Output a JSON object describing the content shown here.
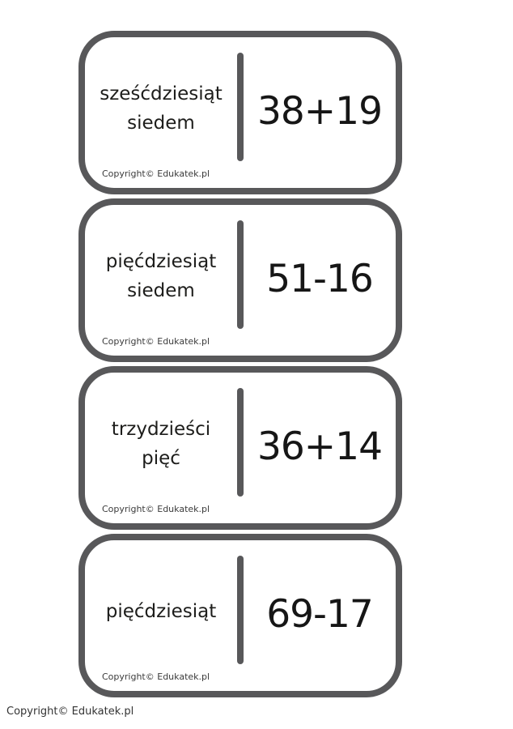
{
  "page": {
    "copyright": "Copyright© Edukatek.pl"
  },
  "colors": {
    "card_border": "#58585a",
    "word_text": "#1d1d1b",
    "copyright_text": "#3b3b3b"
  },
  "cards": [
    {
      "word": "sześćdziesiąt\nsiedem",
      "expression": "38+19",
      "copyright": "Copyright© Edukatek.pl"
    },
    {
      "word": "pięćdziesiąt\nsiedem",
      "expression": "51-16",
      "copyright": "Copyright© Edukatek.pl"
    },
    {
      "word": "trzydzieści\npięć",
      "expression": "36+14",
      "copyright": "Copyright© Edukatek.pl"
    },
    {
      "word": "pięćdziesiąt",
      "expression": "69-17",
      "copyright": "Copyright© Edukatek.pl"
    }
  ]
}
